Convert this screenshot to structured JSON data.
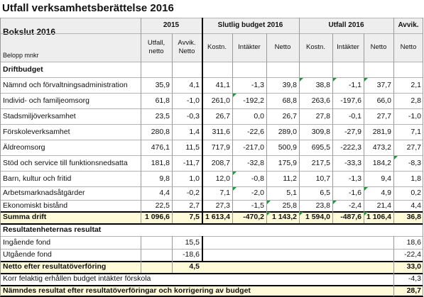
{
  "title": "Utfall verksamhetsberättelse 2016",
  "header": {
    "label": "Bokslut 2016",
    "unit": "Belopp mnkr",
    "groups": [
      "2015",
      "Slutlig budget 2016",
      "Utfall 2016",
      "Avvik."
    ],
    "subs": [
      "Utfall, netto",
      "Avvik. Netto",
      "Kostn.",
      "Intäkter",
      "Netto",
      "Kostn.",
      "Intäkter",
      "Netto",
      "Netto"
    ]
  },
  "rows": [
    {
      "kind": "section",
      "label": "Driftbudget",
      "values": [
        "",
        "",
        "",
        "",
        "",
        "",
        "",
        "",
        ""
      ]
    },
    {
      "kind": "data",
      "label": "Nämnd och förvaltningsadministration",
      "values": [
        "35,9",
        "4,1",
        "41,1",
        "-1,3",
        "39,8",
        "38,8",
        "-1,1",
        "37,7",
        "2,1"
      ]
    },
    {
      "kind": "data",
      "label": "Individ- och familjeomsorg",
      "values": [
        "61,8",
        "-1,0",
        "261,0",
        "-192,2",
        "68,8",
        "263,6",
        "-197,6",
        "66,0",
        "2,8"
      ]
    },
    {
      "kind": "data",
      "label": "Stadsmiljöverksamhet",
      "values": [
        "23,5",
        "-0,3",
        "26,7",
        "0,0",
        "26,7",
        "27,8",
        "-0,1",
        "27,7",
        "-1,0"
      ]
    },
    {
      "kind": "data",
      "label": "Förskoleverksamhet",
      "values": [
        "280,8",
        "1,4",
        "311,6",
        "-22,6",
        "289,0",
        "309,8",
        "-27,9",
        "281,9",
        "7,1"
      ]
    },
    {
      "kind": "data",
      "label": "Äldreomsorg",
      "values": [
        "476,1",
        "11,5",
        "717,9",
        "-217,0",
        "500,9",
        "695,5",
        "-222,3",
        "473,2",
        "27,7"
      ]
    },
    {
      "kind": "data",
      "label": "Stöd och service till funktionsnedsatta",
      "values": [
        "181,8",
        "-11,7",
        "208,7",
        "-32,8",
        "175,9",
        "217,5",
        "-33,3",
        "184,2",
        "-8,3"
      ]
    },
    {
      "kind": "data",
      "label": "Barn, kultur och fritid",
      "values": [
        "9,8",
        "1,0",
        "12,0",
        "-0,8",
        "11,2",
        "10,7",
        "-1,3",
        "9,4",
        "1,8"
      ]
    },
    {
      "kind": "data",
      "label": "Arbetsmarknadsåtgärder",
      "values": [
        "4,4",
        "-0,2",
        "7,1",
        "-2,0",
        "5,1",
        "6,5",
        "-1,6",
        "4,9",
        "0,2"
      ]
    },
    {
      "kind": "data",
      "label": "Ekonomiskt bistånd",
      "values": [
        "22,5",
        "2,7",
        "27,3",
        "-1,5",
        "25,8",
        "23,8",
        "-2,4",
        "21,4",
        "4,4"
      ]
    },
    {
      "kind": "sum",
      "label": "Summa drift",
      "values": [
        "1 096,6",
        "7,5",
        "1 613,4",
        "-470,2",
        "1 143,2",
        "1 594,0",
        "-487,6",
        "1 106,4",
        "36,8"
      ]
    },
    {
      "kind": "section",
      "label": "Resultatenheternas resultat",
      "values": [
        "",
        "",
        "",
        "",
        "",
        "",
        "",
        "",
        ""
      ]
    },
    {
      "kind": "data",
      "label": "Ingående fond",
      "values": [
        "",
        "15,5",
        "",
        "",
        "",
        "",
        "",
        "",
        "18,6"
      ]
    },
    {
      "kind": "data",
      "label": "Utgående fond",
      "values": [
        "",
        "-18,6",
        "",
        "",
        "",
        "",
        "",
        "",
        "-22,4"
      ]
    },
    {
      "kind": "net",
      "label": "Netto efter resultatöverföring",
      "values": [
        "",
        "4,5",
        "",
        "",
        "",
        "",
        "",
        "",
        "33,0"
      ]
    },
    {
      "kind": "data",
      "label": "Korr felaktig erhållen budget intäkter förskola",
      "values": [
        "",
        "",
        "",
        "",
        "",
        "",
        "",
        "",
        "-4,3"
      ]
    },
    {
      "kind": "net2",
      "label": "Nämndes resultat efter resultatöverföringar och korrigering av budget",
      "values": [
        "",
        "",
        "",
        "",
        "",
        "",
        "",
        "",
        "28,7"
      ]
    }
  ]
}
